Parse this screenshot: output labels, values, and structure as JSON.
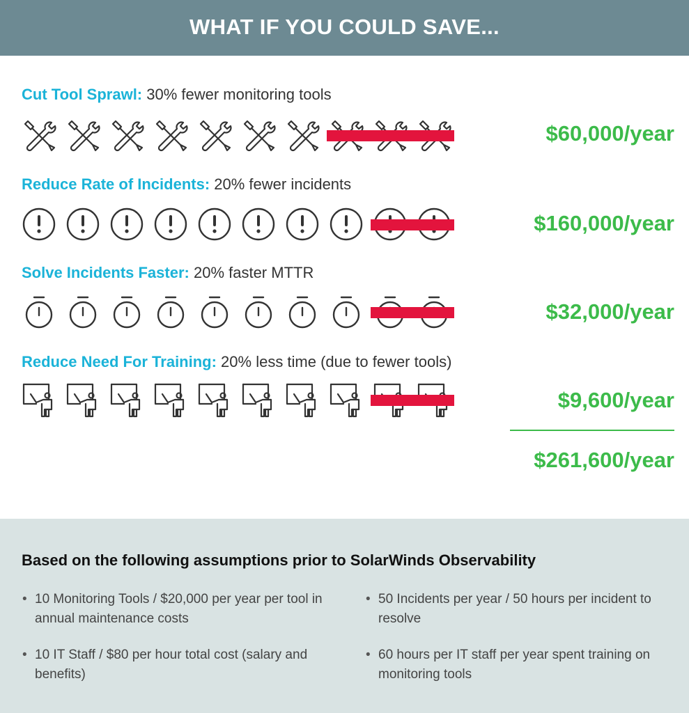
{
  "header": {
    "title": "WHAT IF YOU COULD SAVE..."
  },
  "rows": [
    {
      "lead": "Cut Tool Sprawl:",
      "text": " 30% fewer monitoring tools",
      "icon": "wrench-screwdriver-icon",
      "total": 10,
      "struck": 3,
      "amount": "$60,000/year"
    },
    {
      "lead": "Reduce Rate of Incidents:",
      "text": " 20% fewer incidents",
      "icon": "alert-circle-icon",
      "total": 10,
      "struck": 2,
      "amount": "$160,000/year"
    },
    {
      "lead": "Solve Incidents Faster:",
      "text": " 20% faster MTTR",
      "icon": "stopwatch-icon",
      "total": 10,
      "struck": 2,
      "amount": "$32,000/year"
    },
    {
      "lead": "Reduce Need For Training:",
      "text": " 20% less time (due to fewer tools)",
      "icon": "trainer-board-icon",
      "total": 10,
      "struck": 2,
      "amount": "$9,600/year"
    }
  ],
  "total_amount": "$261,600/year",
  "assumptions": {
    "title": "Based on the following assumptions prior to SolarWinds Observability",
    "items": [
      "10 Monitoring Tools / $20,000 per year per tool in annual maintenance costs",
      "50 Incidents per year / 50 hours per incident to resolve",
      "10 IT Staff / $80 per hour total cost (salary and benefits)",
      "60 hours per IT staff per year spent training on monitoring tools"
    ]
  },
  "colors": {
    "header_bg": "#6d8a93",
    "label_accent": "#1bb3d8",
    "amount_green": "#3cbb4a",
    "strike_red": "#e3143d",
    "footer_bg": "#d9e3e3"
  }
}
